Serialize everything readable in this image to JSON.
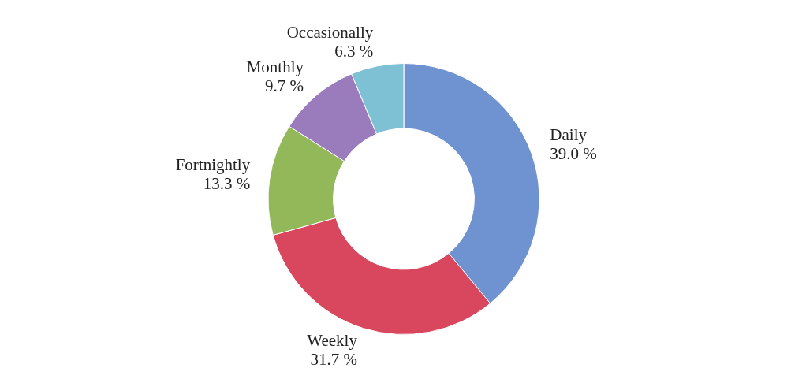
{
  "chart_data": {
    "type": "donut",
    "categories": [
      "Daily",
      "Weekly",
      "Fortnightly",
      "Monthly",
      "Occasionally"
    ],
    "values": [
      39.0,
      31.7,
      13.3,
      9.7,
      6.3
    ],
    "colors": [
      "#6f93d0",
      "#d9475e",
      "#93b85a",
      "#9a7cbc",
      "#7ec0d4"
    ],
    "value_labels": [
      "39.0 %",
      "31.7 %",
      "13.3 %",
      "9.7 %",
      "6.3 %"
    ],
    "legend": false
  }
}
